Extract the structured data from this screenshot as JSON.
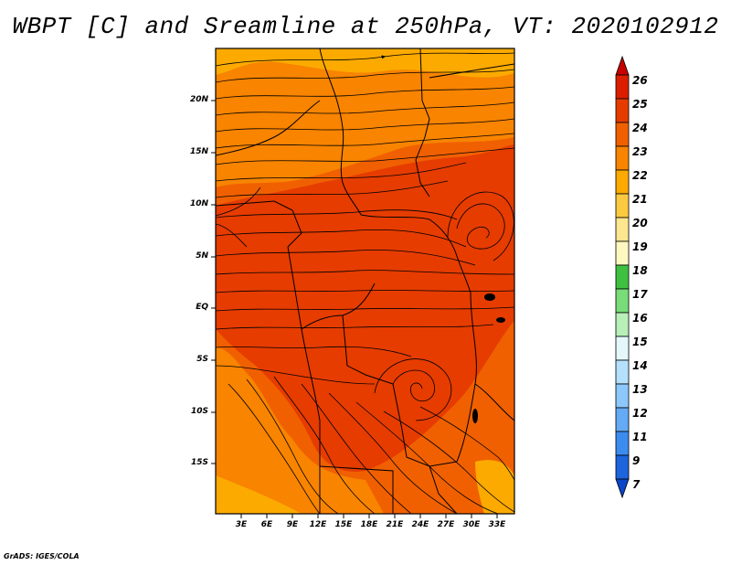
{
  "title": "WBPT [C] and Sreamline at 250hPa, VT: 2020102912",
  "footer": "GrADS: IGES/COLA",
  "map": {
    "lat_labels": [
      "20N",
      "15N",
      "10N",
      "5N",
      "EQ",
      "5S",
      "10S",
      "15S"
    ],
    "lon_labels": [
      "3E",
      "6E",
      "9E",
      "12E",
      "15E",
      "18E",
      "21E",
      "24E",
      "27E",
      "30E",
      "33E"
    ]
  },
  "colorbar": {
    "labels": [
      "26",
      "25",
      "24",
      "23",
      "22",
      "21",
      "20",
      "19",
      "18",
      "17",
      "16",
      "15",
      "14",
      "13",
      "12",
      "11",
      "9",
      "7"
    ],
    "colors": [
      "#c80000",
      "#dc1e00",
      "#e63c00",
      "#f06000",
      "#f88400",
      "#fcaa00",
      "#fcca40",
      "#fce690",
      "#fcf8c0",
      "#40c040",
      "#78dc78",
      "#b8f0b8",
      "#e4f8fc",
      "#b4e0fc",
      "#8cc8fc",
      "#64aaf4",
      "#3c8cf0",
      "#1e64dc",
      "#0a46c8"
    ]
  }
}
